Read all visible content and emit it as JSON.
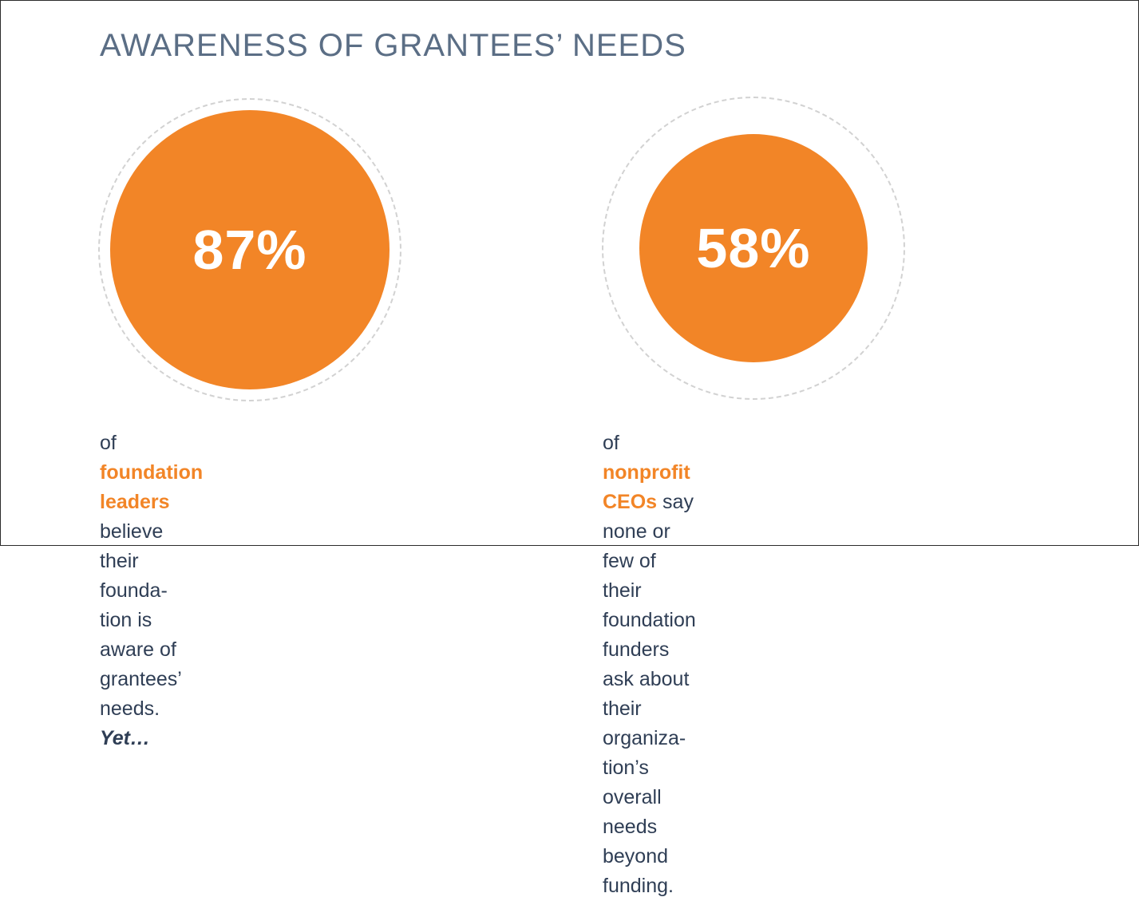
{
  "header": {
    "title": "AWARENESS OF GRANTEES’ NEEDS"
  },
  "colors": {
    "accent": "#f28527",
    "title": "#5b6e85",
    "text": "#2f3e55",
    "ring": "#d2d2d2"
  },
  "chart_data": {
    "type": "proportional-circle",
    "title": "AWARENESS OF GRANTEES’ NEEDS",
    "series": [
      {
        "value": 87,
        "label": "87%",
        "caption": {
          "prefix": "of ",
          "highlight": "foundation leaders",
          "line1_rest": " believe their founda-",
          "line2": "tion is aware of grantees’ needs. ",
          "emphasis": "Yet…"
        }
      },
      {
        "value": 58,
        "label": "58%",
        "caption": {
          "prefix": "of ",
          "highlight": "nonprofit CEOs",
          "line1_rest": " say none or few of their",
          "line2": "foundation funders ask about their organiza-",
          "line3": "tion’s overall needs beyond funding."
        }
      }
    ]
  }
}
